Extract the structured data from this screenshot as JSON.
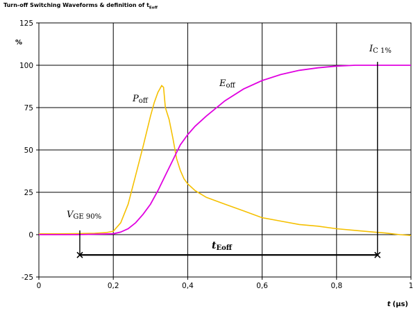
{
  "chart_data": {
    "type": "line",
    "title": "Turn-off Switching Waveforms & definition of t",
    "title_subscript": "Eoff",
    "ylabel": "%",
    "xlabel_var": "t",
    "xlabel_unit": "(µs)",
    "xlim": [
      0,
      1
    ],
    "ylim": [
      -25,
      125
    ],
    "x_ticks": [
      0,
      0.2,
      0.4,
      0.6,
      0.8,
      1
    ],
    "x_tick_labels": [
      "0",
      "0,2",
      "0,4",
      "0,6",
      "0,8",
      "1"
    ],
    "y_ticks": [
      -25,
      0,
      25,
      50,
      75,
      100,
      125
    ],
    "y_tick_labels": [
      "-25",
      "0",
      "25",
      "50",
      "75",
      "100",
      "125"
    ],
    "grid": true,
    "series": [
      {
        "name": "Poff",
        "color": "#f5c000",
        "x": [
          0,
          0.05,
          0.1,
          0.15,
          0.18,
          0.2,
          0.22,
          0.24,
          0.26,
          0.28,
          0.3,
          0.31,
          0.32,
          0.33,
          0.335,
          0.34,
          0.35,
          0.36,
          0.37,
          0.38,
          0.39,
          0.4,
          0.42,
          0.45,
          0.5,
          0.55,
          0.6,
          0.65,
          0.7,
          0.75,
          0.8,
          0.85,
          0.9,
          0.93,
          0.95,
          0.97,
          1.0
        ],
        "y": [
          0.5,
          0.5,
          0.6,
          0.8,
          1.2,
          2,
          7,
          18,
          35,
          52,
          70,
          78,
          84,
          88,
          87,
          75,
          68,
          57,
          45,
          38,
          33,
          30,
          26,
          22,
          18,
          14,
          10,
          8,
          6,
          5,
          3.5,
          2.5,
          1.5,
          1,
          0.5,
          0,
          -0.5
        ]
      },
      {
        "name": "Eoff",
        "color": "#e000e0",
        "x": [
          0,
          0.1,
          0.2,
          0.22,
          0.24,
          0.26,
          0.28,
          0.3,
          0.32,
          0.34,
          0.36,
          0.38,
          0.4,
          0.42,
          0.45,
          0.5,
          0.55,
          0.6,
          0.65,
          0.7,
          0.75,
          0.8,
          0.85,
          0.9,
          0.95,
          1.0
        ],
        "y": [
          0,
          0,
          0.5,
          1.5,
          3.5,
          7,
          12,
          18,
          26,
          35,
          44,
          53,
          59,
          64,
          70,
          79,
          86,
          91,
          94.5,
          97,
          98.5,
          99.5,
          100,
          100,
          100,
          100
        ]
      }
    ],
    "annotations": {
      "vge_label_main": "V",
      "vge_label_sub": "GE 90%",
      "ic_label_main": "I",
      "ic_label_sub": "C 1%",
      "poff_label_main": "P",
      "poff_label_sub": "off",
      "eoff_label_main": "E",
      "eoff_label_sub": "off",
      "teoff_label_main": "t",
      "teoff_label_sub": "Eoff",
      "teoff_arrow_x": [
        0.11,
        0.91
      ],
      "teoff_arrow_y": -12
    }
  }
}
